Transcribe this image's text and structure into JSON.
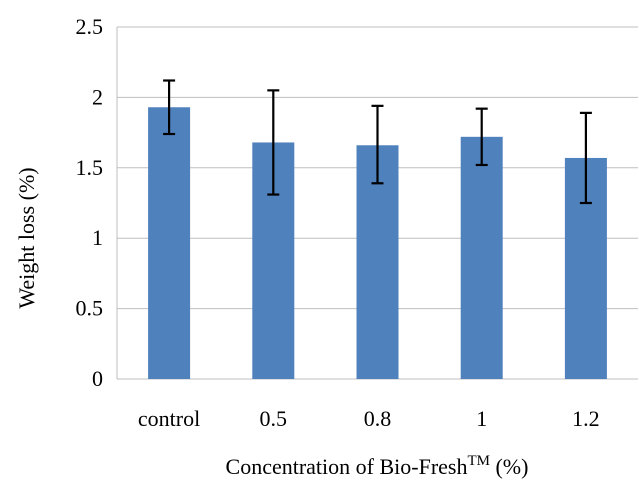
{
  "chart_data": {
    "type": "bar",
    "categories": [
      "control",
      "0.5",
      "0.8",
      "1",
      "1.2"
    ],
    "values": [
      1.93,
      1.68,
      1.66,
      1.72,
      1.57
    ],
    "error_bars": [
      {
        "low": 1.74,
        "high": 2.12
      },
      {
        "low": 1.31,
        "high": 2.05
      },
      {
        "low": 1.39,
        "high": 1.94
      },
      {
        "low": 1.52,
        "high": 1.92
      },
      {
        "low": 1.25,
        "high": 1.89
      }
    ],
    "ylim": [
      0,
      2.5
    ],
    "y_ticks": [
      "0",
      "0.5",
      "1",
      "1.5",
      "2",
      "2.5"
    ],
    "ylabel": "Weight loss (%)",
    "xlabel": {
      "prefix": "Concentration of Bio-Fresh",
      "superscript": "TM",
      "suffix": " (%)"
    },
    "grid": true,
    "bar_color": "#4f81bd",
    "errorbar_color": "#000000"
  }
}
